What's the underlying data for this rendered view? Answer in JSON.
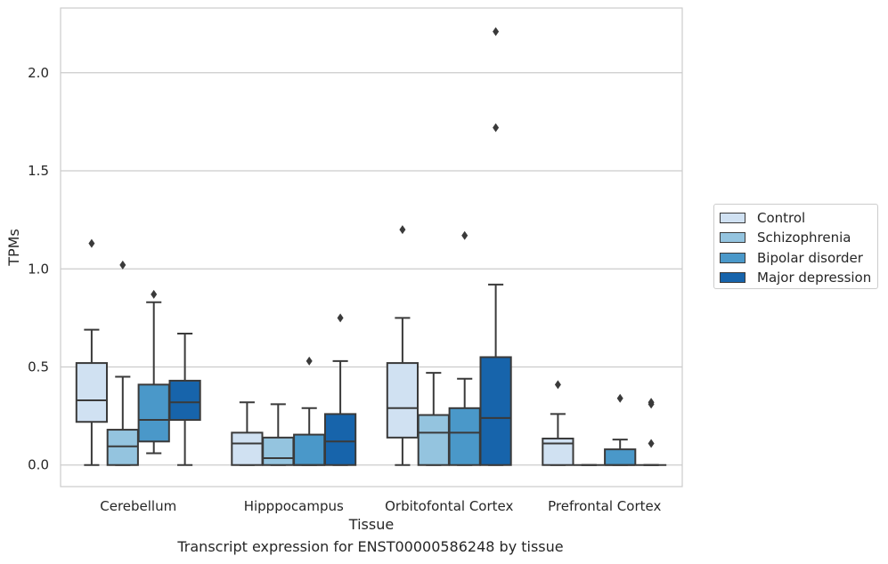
{
  "chart_data": {
    "type": "box",
    "title": "",
    "xlabel": "Tissue",
    "ylabel": "TPMs",
    "caption": "Transcript expression for ENST00000586248 by tissue",
    "ylim": [
      -0.11,
      2.33
    ],
    "yticks": [
      0.0,
      0.5,
      1.0,
      1.5,
      2.0
    ],
    "ytick_labels": [
      "0.0",
      "0.5",
      "1.0",
      "1.5",
      "2.0"
    ],
    "grid": "horizontal",
    "legend_position": "right",
    "categories": [
      "Cerebellum",
      "Hipppocampus",
      "Orbitofontal Cortex",
      "Prefrontal Cortex"
    ],
    "series": [
      {
        "name": "Control",
        "color": "#d0e1f2",
        "boxes": [
          {
            "whisker_low": 0.0,
            "q1": 0.22,
            "median": 0.33,
            "q3": 0.52,
            "whisker_high": 0.69,
            "outliers": [
              1.13
            ]
          },
          {
            "whisker_low": 0.0,
            "q1": 0.0,
            "median": 0.11,
            "q3": 0.165,
            "whisker_high": 0.32,
            "outliers": []
          },
          {
            "whisker_low": 0.0,
            "q1": 0.14,
            "median": 0.29,
            "q3": 0.52,
            "whisker_high": 0.75,
            "outliers": [
              1.2
            ]
          },
          {
            "whisker_low": 0.0,
            "q1": 0.0,
            "median": 0.11,
            "q3": 0.135,
            "whisker_high": 0.26,
            "outliers": [
              0.41
            ]
          }
        ]
      },
      {
        "name": "Schizophrenia",
        "color": "#94c4df",
        "boxes": [
          {
            "whisker_low": 0.0,
            "q1": 0.0,
            "median": 0.095,
            "q3": 0.18,
            "whisker_high": 0.45,
            "outliers": [
              1.02
            ]
          },
          {
            "whisker_low": 0.0,
            "q1": 0.0,
            "median": 0.035,
            "q3": 0.14,
            "whisker_high": 0.31,
            "outliers": []
          },
          {
            "whisker_low": 0.0,
            "q1": 0.0,
            "median": 0.165,
            "q3": 0.255,
            "whisker_high": 0.47,
            "outliers": []
          },
          {
            "whisker_low": 0.0,
            "q1": 0.0,
            "median": 0.0,
            "q3": 0.0,
            "whisker_high": 0.0,
            "outliers": []
          }
        ]
      },
      {
        "name": "Bipolar disorder",
        "color": "#4a98c9",
        "boxes": [
          {
            "whisker_low": 0.06,
            "q1": 0.12,
            "median": 0.23,
            "q3": 0.41,
            "whisker_high": 0.83,
            "outliers": [
              0.87
            ]
          },
          {
            "whisker_low": 0.0,
            "q1": 0.0,
            "median": 0.0,
            "q3": 0.155,
            "whisker_high": 0.29,
            "outliers": [
              0.53
            ]
          },
          {
            "whisker_low": 0.0,
            "q1": 0.0,
            "median": 0.165,
            "q3": 0.29,
            "whisker_high": 0.44,
            "outliers": [
              1.17
            ]
          },
          {
            "whisker_low": 0.0,
            "q1": 0.0,
            "median": 0.0,
            "q3": 0.08,
            "whisker_high": 0.13,
            "outliers": [
              0.34
            ]
          }
        ]
      },
      {
        "name": "Major depression",
        "color": "#1764ab",
        "boxes": [
          {
            "whisker_low": 0.0,
            "q1": 0.23,
            "median": 0.32,
            "q3": 0.43,
            "whisker_high": 0.67,
            "outliers": []
          },
          {
            "whisker_low": 0.0,
            "q1": 0.0,
            "median": 0.12,
            "q3": 0.26,
            "whisker_high": 0.53,
            "outliers": [
              0.75
            ]
          },
          {
            "whisker_low": 0.0,
            "q1": 0.0,
            "median": 0.24,
            "q3": 0.55,
            "whisker_high": 0.92,
            "outliers": [
              1.72,
              2.21
            ]
          },
          {
            "whisker_low": 0.0,
            "q1": 0.0,
            "median": 0.0,
            "q3": 0.0,
            "whisker_high": 0.0,
            "outliers": [
              0.11,
              0.31,
              0.32
            ]
          }
        ]
      }
    ]
  }
}
